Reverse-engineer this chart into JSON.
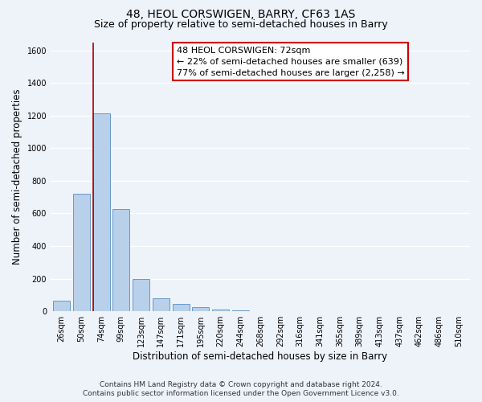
{
  "title": "48, HEOL CORSWIGEN, BARRY, CF63 1AS",
  "subtitle": "Size of property relative to semi-detached houses in Barry",
  "xlabel": "Distribution of semi-detached houses by size in Barry",
  "ylabel": "Number of semi-detached properties",
  "bar_labels": [
    "26sqm",
    "50sqm",
    "74sqm",
    "99sqm",
    "123sqm",
    "147sqm",
    "171sqm",
    "195sqm",
    "220sqm",
    "244sqm",
    "268sqm",
    "292sqm",
    "316sqm",
    "341sqm",
    "365sqm",
    "389sqm",
    "413sqm",
    "437sqm",
    "462sqm",
    "486sqm",
    "510sqm"
  ],
  "bar_values": [
    65,
    720,
    1215,
    625,
    200,
    80,
    45,
    25,
    10,
    5,
    0,
    0,
    0,
    0,
    0,
    0,
    0,
    0,
    0,
    0,
    0
  ],
  "bar_color": "#b8d0ea",
  "bar_edge_color": "#6699cc",
  "property_line_color": "#aa0000",
  "annotation_text": "48 HEOL CORSWIGEN: 72sqm\n← 22% of semi-detached houses are smaller (639)\n77% of semi-detached houses are larger (2,258) →",
  "annotation_box_color": "#ffffff",
  "annotation_box_edge": "#cc0000",
  "ylim": [
    0,
    1650
  ],
  "yticks": [
    0,
    200,
    400,
    600,
    800,
    1000,
    1200,
    1400,
    1600
  ],
  "footer_line1": "Contains HM Land Registry data © Crown copyright and database right 2024.",
  "footer_line2": "Contains public sector information licensed under the Open Government Licence v3.0.",
  "background_color": "#eef2f9",
  "grid_color": "#ffffff",
  "title_fontsize": 10,
  "subtitle_fontsize": 9,
  "axis_label_fontsize": 8.5,
  "tick_fontsize": 7,
  "annotation_fontsize": 8,
  "footer_fontsize": 6.5
}
